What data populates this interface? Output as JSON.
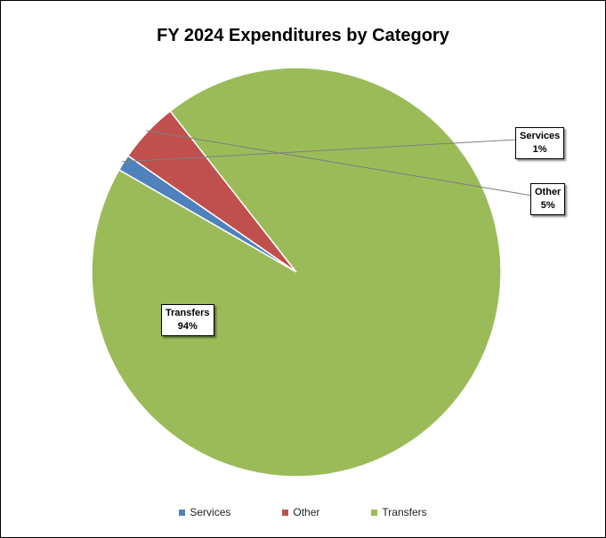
{
  "chart_data": {
    "type": "pie",
    "title": "FY 2024 Expenditures by Category",
    "slices": [
      {
        "label": "Services",
        "value": 1.3,
        "display": "1%",
        "color": "#4F81BD"
      },
      {
        "label": "Other",
        "value": 4.8,
        "display": "5%",
        "color": "#C0504D"
      },
      {
        "label": "Transfers",
        "value": 93.9,
        "display": "94%",
        "color": "#9BBB59"
      }
    ],
    "legend_position": "bottom"
  }
}
